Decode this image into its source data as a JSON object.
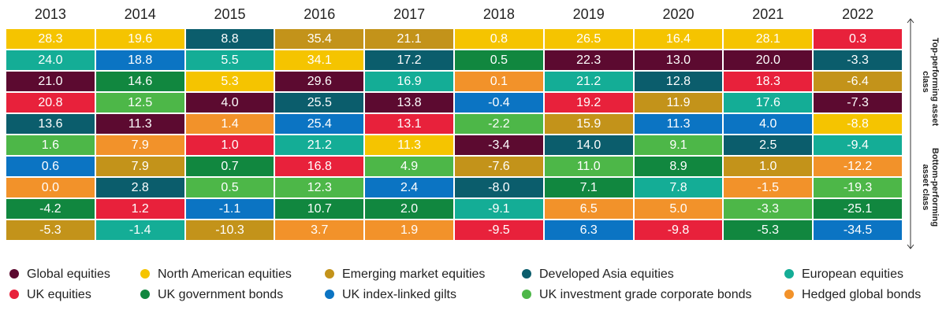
{
  "side_labels": {
    "top": "Top-performing asset class",
    "bottom": "Bottom-performing asset class"
  },
  "legend": [
    {
      "name": "Global equities",
      "color": "#5c0a30"
    },
    {
      "name": "North American equities",
      "color": "#f5c400"
    },
    {
      "name": "Emerging market equities",
      "color": "#c3931a"
    },
    {
      "name": "Developed Asia equities",
      "color": "#0b5d6c"
    },
    {
      "name": "European equities",
      "color": "#14ad96"
    },
    {
      "name": "UK equities",
      "color": "#e8213b"
    },
    {
      "name": "UK government bonds",
      "color": "#11873f"
    },
    {
      "name": "UK index-linked gilts",
      "color": "#0b74c3"
    },
    {
      "name": "UK investment grade corporate bonds",
      "color": "#4db748"
    },
    {
      "name": "Hedged global bonds",
      "color": "#f2922a"
    }
  ],
  "columns": [
    {
      "year": "2013",
      "cells": [
        {
          "value": "28.3",
          "color": "#f5c400"
        },
        {
          "value": "24.0",
          "color": "#14ad96"
        },
        {
          "value": "21.0",
          "color": "#5c0a30"
        },
        {
          "value": "20.8",
          "color": "#e8213b"
        },
        {
          "value": "13.6",
          "color": "#0b5d6c"
        },
        {
          "value": "1.6",
          "color": "#4db748"
        },
        {
          "value": "0.6",
          "color": "#0b74c3"
        },
        {
          "value": "0.0",
          "color": "#f2922a"
        },
        {
          "value": "-4.2",
          "color": "#11873f"
        },
        {
          "value": "-5.3",
          "color": "#c3931a"
        }
      ]
    },
    {
      "year": "2014",
      "cells": [
        {
          "value": "19.6",
          "color": "#f5c400"
        },
        {
          "value": "18.8",
          "color": "#0b74c3"
        },
        {
          "value": "14.6",
          "color": "#11873f"
        },
        {
          "value": "12.5",
          "color": "#4db748"
        },
        {
          "value": "11.3",
          "color": "#5c0a30"
        },
        {
          "value": "7.9",
          "color": "#f2922a"
        },
        {
          "value": "7.9",
          "color": "#c3931a"
        },
        {
          "value": "2.8",
          "color": "#0b5d6c"
        },
        {
          "value": "1.2",
          "color": "#e8213b"
        },
        {
          "value": "-1.4",
          "color": "#14ad96"
        }
      ]
    },
    {
      "year": "2015",
      "cells": [
        {
          "value": "8.8",
          "color": "#0b5d6c"
        },
        {
          "value": "5.5",
          "color": "#14ad96"
        },
        {
          "value": "5.3",
          "color": "#f5c400"
        },
        {
          "value": "4.0",
          "color": "#5c0a30"
        },
        {
          "value": "1.4",
          "color": "#f2922a"
        },
        {
          "value": "1.0",
          "color": "#e8213b"
        },
        {
          "value": "0.7",
          "color": "#11873f"
        },
        {
          "value": "0.5",
          "color": "#4db748"
        },
        {
          "value": "-1.1",
          "color": "#0b74c3"
        },
        {
          "value": "-10.3",
          "color": "#c3931a"
        }
      ]
    },
    {
      "year": "2016",
      "cells": [
        {
          "value": "35.4",
          "color": "#c3931a"
        },
        {
          "value": "34.1",
          "color": "#f5c400"
        },
        {
          "value": "29.6",
          "color": "#5c0a30"
        },
        {
          "value": "25.5",
          "color": "#0b5d6c"
        },
        {
          "value": "25.4",
          "color": "#0b74c3"
        },
        {
          "value": "21.2",
          "color": "#14ad96"
        },
        {
          "value": "16.8",
          "color": "#e8213b"
        },
        {
          "value": "12.3",
          "color": "#4db748"
        },
        {
          "value": "10.7",
          "color": "#11873f"
        },
        {
          "value": "3.7",
          "color": "#f2922a"
        }
      ]
    },
    {
      "year": "2017",
      "cells": [
        {
          "value": "21.1",
          "color": "#c3931a"
        },
        {
          "value": "17.2",
          "color": "#0b5d6c"
        },
        {
          "value": "16.9",
          "color": "#14ad96"
        },
        {
          "value": "13.8",
          "color": "#5c0a30"
        },
        {
          "value": "13.1",
          "color": "#e8213b"
        },
        {
          "value": "11.3",
          "color": "#f5c400"
        },
        {
          "value": "4.9",
          "color": "#4db748"
        },
        {
          "value": "2.4",
          "color": "#0b74c3"
        },
        {
          "value": "2.0",
          "color": "#11873f"
        },
        {
          "value": "1.9",
          "color": "#f2922a"
        }
      ]
    },
    {
      "year": "2018",
      "cells": [
        {
          "value": "0.8",
          "color": "#f5c400"
        },
        {
          "value": "0.5",
          "color": "#11873f"
        },
        {
          "value": "0.1",
          "color": "#f2922a"
        },
        {
          "value": "-0.4",
          "color": "#0b74c3"
        },
        {
          "value": "-2.2",
          "color": "#4db748"
        },
        {
          "value": "-3.4",
          "color": "#5c0a30"
        },
        {
          "value": "-7.6",
          "color": "#c3931a"
        },
        {
          "value": "-8.0",
          "color": "#0b5d6c"
        },
        {
          "value": "-9.1",
          "color": "#14ad96"
        },
        {
          "value": "-9.5",
          "color": "#e8213b"
        }
      ]
    },
    {
      "year": "2019",
      "cells": [
        {
          "value": "26.5",
          "color": "#f5c400"
        },
        {
          "value": "22.3",
          "color": "#5c0a30"
        },
        {
          "value": "21.2",
          "color": "#14ad96"
        },
        {
          "value": "19.2",
          "color": "#e8213b"
        },
        {
          "value": "15.9",
          "color": "#c3931a"
        },
        {
          "value": "14.0",
          "color": "#0b5d6c"
        },
        {
          "value": "11.0",
          "color": "#4db748"
        },
        {
          "value": "7.1",
          "color": "#11873f"
        },
        {
          "value": "6.5",
          "color": "#f2922a"
        },
        {
          "value": "6.3",
          "color": "#0b74c3"
        }
      ]
    },
    {
      "year": "2020",
      "cells": [
        {
          "value": "16.4",
          "color": "#f5c400"
        },
        {
          "value": "13.0",
          "color": "#5c0a30"
        },
        {
          "value": "12.8",
          "color": "#0b5d6c"
        },
        {
          "value": "11.9",
          "color": "#c3931a"
        },
        {
          "value": "11.3",
          "color": "#0b74c3"
        },
        {
          "value": "9.1",
          "color": "#4db748"
        },
        {
          "value": "8.9",
          "color": "#11873f"
        },
        {
          "value": "7.8",
          "color": "#14ad96"
        },
        {
          "value": "5.0",
          "color": "#f2922a"
        },
        {
          "value": "-9.8",
          "color": "#e8213b"
        }
      ]
    },
    {
      "year": "2021",
      "cells": [
        {
          "value": "28.1",
          "color": "#f5c400"
        },
        {
          "value": "20.0",
          "color": "#5c0a30"
        },
        {
          "value": "18.3",
          "color": "#e8213b"
        },
        {
          "value": "17.6",
          "color": "#14ad96"
        },
        {
          "value": "4.0",
          "color": "#0b74c3"
        },
        {
          "value": "2.5",
          "color": "#0b5d6c"
        },
        {
          "value": "1.0",
          "color": "#c3931a"
        },
        {
          "value": "-1.5",
          "color": "#f2922a"
        },
        {
          "value": "-3.3",
          "color": "#4db748"
        },
        {
          "value": "-5.3",
          "color": "#11873f"
        }
      ]
    },
    {
      "year": "2022",
      "cells": [
        {
          "value": "0.3",
          "color": "#e8213b"
        },
        {
          "value": "-3.3",
          "color": "#0b5d6c"
        },
        {
          "value": "-6.4",
          "color": "#c3931a"
        },
        {
          "value": "-7.3",
          "color": "#5c0a30"
        },
        {
          "value": "-8.8",
          "color": "#f5c400"
        },
        {
          "value": "-9.4",
          "color": "#14ad96"
        },
        {
          "value": "-12.2",
          "color": "#f2922a"
        },
        {
          "value": "-19.3",
          "color": "#4db748"
        },
        {
          "value": "-25.1",
          "color": "#11873f"
        },
        {
          "value": "-34.5",
          "color": "#0b74c3"
        }
      ]
    }
  ]
}
